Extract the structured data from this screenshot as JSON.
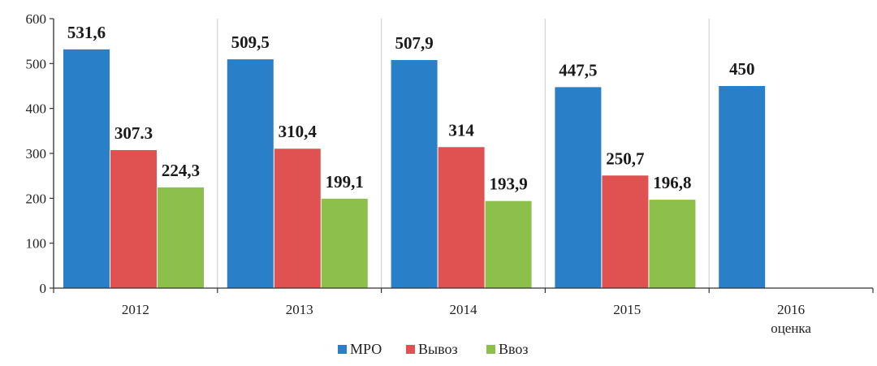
{
  "chart_data": {
    "type": "bar",
    "title": "",
    "xlabel": "",
    "ylabel": "",
    "ylim": [
      0,
      600
    ],
    "yticks": [
      0,
      100,
      200,
      300,
      400,
      500,
      600
    ],
    "grid": "vertical separators between categories",
    "legend_position": "bottom-center",
    "categories": [
      {
        "label": "2012",
        "sublabel": ""
      },
      {
        "label": "2013",
        "sublabel": ""
      },
      {
        "label": "2014",
        "sublabel": ""
      },
      {
        "label": "2015",
        "sublabel": ""
      },
      {
        "label": "2016",
        "sublabel": "оценка"
      }
    ],
    "series": [
      {
        "name": "МРО",
        "color": "#2a80c8",
        "values": [
          531.6,
          509.5,
          507.9,
          447.5,
          450
        ],
        "labels": [
          "531,6",
          "509,5",
          "507,9",
          "447,5",
          "450"
        ]
      },
      {
        "name": "Вывоз",
        "color": "#e05252",
        "values": [
          307.3,
          310.4,
          314,
          250.7,
          null
        ],
        "labels": [
          "307.3",
          "310,4",
          "314",
          "250,7",
          ""
        ]
      },
      {
        "name": "Ввоз",
        "color": "#8cc04a",
        "values": [
          224.3,
          199.1,
          193.9,
          196.8,
          null
        ],
        "labels": [
          "224,3",
          "199,1",
          "193,9",
          "196,8",
          ""
        ]
      }
    ]
  }
}
